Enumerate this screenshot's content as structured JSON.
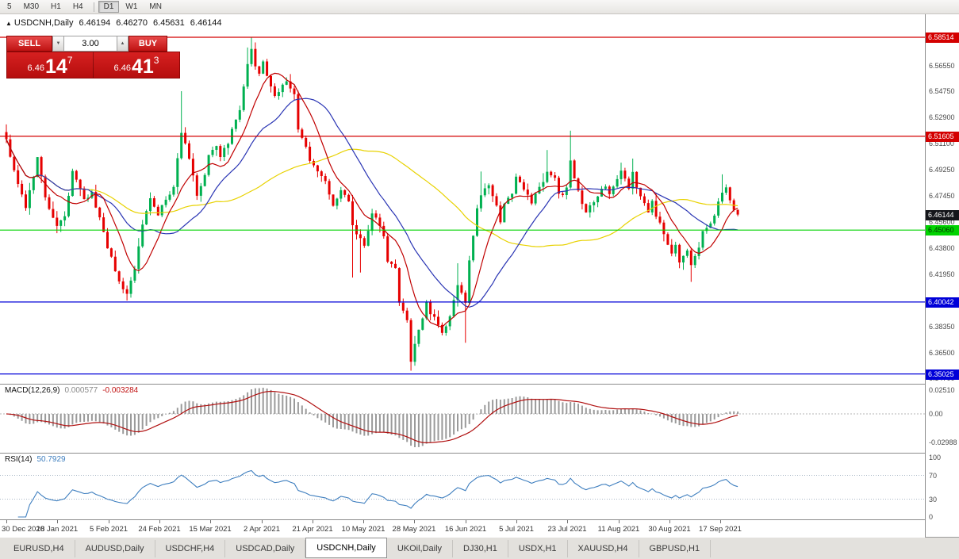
{
  "toolbar": {
    "periods": [
      {
        "label": "5"
      },
      {
        "label": "M30"
      },
      {
        "label": "H1"
      },
      {
        "label": "H4"
      },
      {
        "sep": true
      },
      {
        "label": "D1",
        "active": true
      },
      {
        "label": "W1"
      },
      {
        "label": "MN"
      }
    ]
  },
  "chart": {
    "marker": "▲",
    "symbol": "USDCNH,Daily",
    "open": "6.46194",
    "high": "6.46270",
    "low": "6.45631",
    "close": "6.46144"
  },
  "trade_panel": {
    "sell_label": "SELL",
    "buy_label": "BUY",
    "volume": "3.00",
    "spinner_down_icon": "▼",
    "spinner_up_icon": "▲",
    "bid": {
      "prefix": "6.46",
      "big": "14",
      "pip": "7"
    },
    "ask": {
      "prefix": "6.46",
      "big": "41",
      "pip": "3"
    }
  },
  "price_axis": {
    "ticks": [
      {
        "text": "6.56550",
        "price": 6.5655
      },
      {
        "text": "6.54750",
        "price": 6.5475
      },
      {
        "text": "6.52900",
        "price": 6.529
      },
      {
        "text": "6.51100",
        "price": 6.511
      },
      {
        "text": "6.49250",
        "price": 6.4925
      },
      {
        "text": "6.47450",
        "price": 6.4745
      },
      {
        "text": "6.45600",
        "price": 6.456
      },
      {
        "text": "6.43800",
        "price": 6.438
      },
      {
        "text": "6.41950",
        "price": 6.4195
      },
      {
        "text": "6.38350",
        "price": 6.3835
      },
      {
        "text": "6.36500",
        "price": 6.365
      },
      {
        "text": "6.34700",
        "price": 6.347
      }
    ],
    "badges": [
      {
        "text": "6.58514",
        "price": 6.58514,
        "color": "#d40000",
        "text_color": "#ffffff",
        "name": "resistance-upper-badge"
      },
      {
        "text": "6.51605",
        "price": 6.51605,
        "color": "#d40000",
        "text_color": "#ffffff",
        "name": "resistance-lower-badge"
      },
      {
        "text": "6.46144",
        "price": 6.46144,
        "color": "#14161a",
        "text_color": "#ffffff",
        "name": "current-price-badge"
      },
      {
        "text": "6.45060",
        "price": 6.4506,
        "color": "#00d300",
        "text_color": "#003300",
        "name": "support-green-badge"
      },
      {
        "text": "6.40042",
        "price": 6.40042,
        "color": "#0000d8",
        "text_color": "#ffffff",
        "name": "support-blue1-badge"
      },
      {
        "text": "6.35025",
        "price": 6.35025,
        "color": "#0000d8",
        "text_color": "#ffffff",
        "name": "support-blue2-badge"
      }
    ]
  },
  "macd": {
    "name": "MACD(12,26,9)",
    "main_value": "0.000577",
    "signal_value": "-0.003284",
    "axis": [
      "0.02510",
      "0.00",
      "-0.02988"
    ]
  },
  "rsi": {
    "name": "RSI(14)",
    "value": "50.7929",
    "axis": [
      "100",
      "70",
      "30",
      "0"
    ],
    "levels": [
      70,
      30
    ]
  },
  "time_axis": {
    "dates": [
      "30 Dec 2020",
      "18 Jan 2021",
      "5 Feb 2021",
      "24 Feb 2021",
      "15 Mar 2021",
      "2 Apr 2021",
      "21 Apr 2021",
      "10 May 2021",
      "28 May 2021",
      "16 Jun 2021",
      "5 Jul 2021",
      "23 Jul 2021",
      "11 Aug 2021",
      "30 Aug 2021",
      "17 Sep 2021"
    ]
  },
  "tabs": [
    {
      "label": "EURUSD,H4"
    },
    {
      "label": "AUDUSD,Daily"
    },
    {
      "label": "USDCHF,H4"
    },
    {
      "label": "USDCAD,Daily"
    },
    {
      "label": "USDCNH,Daily",
      "active": true
    },
    {
      "label": "UKOil,Daily"
    },
    {
      "label": "DJ30,H1"
    },
    {
      "label": "USDX,H1"
    },
    {
      "label": "XAUUSD,H4"
    },
    {
      "label": "GBPUSD,H1"
    }
  ],
  "chart_data": {
    "type": "candlestick",
    "symbol": "USDCNH",
    "timeframe": "Daily",
    "title": "USDCNH,Daily 6.46194 6.46270 6.45631 6.46144",
    "x_range": [
      "30 Dec 2020",
      "17 Sep 2021"
    ],
    "ylim": [
      6.3434,
      6.60118
    ],
    "candle_count": 189,
    "last_close": 6.46144,
    "seed": 42,
    "noise": 0.0042,
    "wick": 0.005,
    "close_anchors": [
      [
        0,
        6.515
      ],
      [
        2,
        6.492
      ],
      [
        5,
        6.468
      ],
      [
        8,
        6.5
      ],
      [
        10,
        6.472
      ],
      [
        13,
        6.452
      ],
      [
        15,
        6.462
      ],
      [
        17,
        6.49
      ],
      [
        20,
        6.472
      ],
      [
        22,
        6.477
      ],
      [
        25,
        6.448
      ],
      [
        28,
        6.422
      ],
      [
        31,
        6.406
      ],
      [
        33,
        6.422
      ],
      [
        35,
        6.455
      ],
      [
        37,
        6.472
      ],
      [
        39,
        6.46
      ],
      [
        41,
        6.472
      ],
      [
        43,
        6.482
      ],
      [
        45,
        6.52
      ],
      [
        47,
        6.5
      ],
      [
        49,
        6.475
      ],
      [
        51,
        6.49
      ],
      [
        52,
        6.505
      ],
      [
        54,
        6.51
      ],
      [
        55,
        6.5
      ],
      [
        57,
        6.512
      ],
      [
        60,
        6.535
      ],
      [
        62,
        6.568
      ],
      [
        63,
        6.575
      ],
      [
        65,
        6.558
      ],
      [
        66,
        6.567
      ],
      [
        68,
        6.55
      ],
      [
        69,
        6.545
      ],
      [
        71,
        6.552
      ],
      [
        72,
        6.556
      ],
      [
        74,
        6.545
      ],
      [
        75,
        6.52
      ],
      [
        77,
        6.51
      ],
      [
        78,
        6.5
      ],
      [
        80,
        6.49
      ],
      [
        82,
        6.484
      ],
      [
        83,
        6.474
      ],
      [
        84,
        6.468
      ],
      [
        86,
        6.48
      ],
      [
        88,
        6.47
      ],
      [
        89,
        6.452
      ],
      [
        91,
        6.444
      ],
      [
        92,
        6.44
      ],
      [
        94,
        6.464
      ],
      [
        95,
        6.458
      ],
      [
        97,
        6.445
      ],
      [
        98,
        6.43
      ],
      [
        100,
        6.425
      ],
      [
        101,
        6.4
      ],
      [
        103,
        6.386
      ],
      [
        104,
        6.36
      ],
      [
        105,
        6.372
      ],
      [
        107,
        6.39
      ],
      [
        108,
        6.401
      ],
      [
        109,
        6.394
      ],
      [
        111,
        6.385
      ],
      [
        112,
        6.379
      ],
      [
        114,
        6.39
      ],
      [
        115,
        6.401
      ],
      [
        116,
        6.412
      ],
      [
        118,
        6.401
      ],
      [
        119,
        6.43
      ],
      [
        121,
        6.464
      ],
      [
        122,
        6.476
      ],
      [
        124,
        6.48
      ],
      [
        125,
        6.474
      ],
      [
        127,
        6.458
      ],
      [
        128,
        6.47
      ],
      [
        130,
        6.476
      ],
      [
        131,
        6.486
      ],
      [
        133,
        6.478
      ],
      [
        135,
        6.47
      ],
      [
        136,
        6.476
      ],
      [
        137,
        6.48
      ],
      [
        139,
        6.492
      ],
      [
        141,
        6.486
      ],
      [
        142,
        6.474
      ],
      [
        144,
        6.48
      ],
      [
        145,
        6.5
      ],
      [
        146,
        6.486
      ],
      [
        148,
        6.469
      ],
      [
        149,
        6.464
      ],
      [
        151,
        6.47
      ],
      [
        152,
        6.476
      ],
      [
        154,
        6.48
      ],
      [
        155,
        6.474
      ],
      [
        157,
        6.486
      ],
      [
        158,
        6.49
      ],
      [
        160,
        6.479
      ],
      [
        161,
        6.49
      ],
      [
        163,
        6.474
      ],
      [
        165,
        6.464
      ],
      [
        166,
        6.47
      ],
      [
        168,
        6.454
      ],
      [
        169,
        6.448
      ],
      [
        171,
        6.434
      ],
      [
        172,
        6.44
      ],
      [
        173,
        6.43
      ],
      [
        175,
        6.436
      ],
      [
        176,
        6.428
      ],
      [
        178,
        6.44
      ],
      [
        179,
        6.451
      ],
      [
        181,
        6.455
      ],
      [
        182,
        6.461
      ],
      [
        184,
        6.476
      ],
      [
        185,
        6.48
      ],
      [
        187,
        6.464
      ],
      [
        188,
        6.4614
      ]
    ],
    "wick_overrides": [
      {
        "i": 31,
        "low": 6.4015
      },
      {
        "i": 45,
        "high": 6.5475
      },
      {
        "i": 62,
        "high": 6.578
      },
      {
        "i": 63,
        "high": 6.5851
      },
      {
        "i": 89,
        "low": 6.4175
      },
      {
        "i": 91,
        "low": 6.421
      },
      {
        "i": 104,
        "low": 6.3525
      },
      {
        "i": 105,
        "low": 6.356
      },
      {
        "i": 116,
        "high": 6.4275
      },
      {
        "i": 118,
        "low": 6.372
      },
      {
        "i": 122,
        "high": 6.4915
      },
      {
        "i": 139,
        "high": 6.5065
      },
      {
        "i": 145,
        "high": 6.52
      },
      {
        "i": 161,
        "high": 6.5005
      },
      {
        "i": 176,
        "low": 6.4145
      },
      {
        "i": 184,
        "high": 6.4895
      }
    ],
    "hlines": [
      {
        "price": 6.58514,
        "color": "#d40000"
      },
      {
        "price": 6.51605,
        "color": "#d40000"
      },
      {
        "price": 6.4506,
        "color": "#00d300"
      },
      {
        "price": 6.40042,
        "color": "#0000d8"
      },
      {
        "price": 6.35025,
        "color": "#0000d8"
      }
    ],
    "moving_averages": [
      {
        "window": 9,
        "color": "#c00000"
      },
      {
        "window": 22,
        "color": "#2a35b4"
      },
      {
        "window": 55,
        "color": "#e8d200"
      }
    ],
    "colors": {
      "bull": "#00b050",
      "bear": "#e60000",
      "macd_hist": "#9a9a9a",
      "macd_signal": "#b01010",
      "rsi_line": "#3f7fbf"
    },
    "indicators": [
      {
        "name": "MACD",
        "params": [
          12,
          26,
          9
        ],
        "values": [
          0.000577,
          -0.003284
        ]
      },
      {
        "name": "RSI",
        "params": [
          14
        ],
        "value": 50.7929
      }
    ]
  }
}
